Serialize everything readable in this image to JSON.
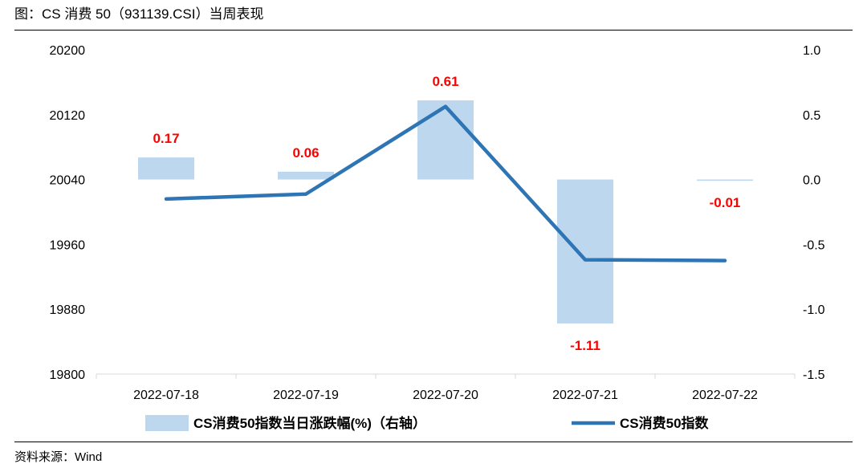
{
  "title": "图：CS 消费 50（931139.CSI）当周表现",
  "source": "资料来源：Wind",
  "chart_data": {
    "type": "bar+line",
    "categories": [
      "2022-07-18",
      "2022-07-19",
      "2022-07-20",
      "2022-07-21",
      "2022-07-22"
    ],
    "left_axis": {
      "ylim": [
        19800,
        20200
      ],
      "ticks": [
        "20200",
        "20120",
        "20040",
        "19960",
        "19880",
        "19800"
      ]
    },
    "right_axis": {
      "ylim": [
        -1.5,
        1.0
      ],
      "ticks": [
        "1.0",
        "0.5",
        "0.0",
        "-0.5",
        "-1.0",
        "-1.5"
      ]
    },
    "bar_series": {
      "name": "CS消费50指数当日涨跌幅(%)（右轴）",
      "axis": "right",
      "values": [
        0.17,
        0.06,
        0.61,
        -1.11,
        -0.01
      ],
      "labels": [
        "0.17",
        "0.06",
        "0.61",
        "-1.11",
        "-0.01"
      ],
      "color": "#bdd7ee",
      "label_color": "#ff0000"
    },
    "line_series": {
      "name": "CS消费50指数",
      "axis": "left",
      "values": [
        20016,
        20022,
        20130,
        19941,
        19940
      ],
      "color": "#2e75b6"
    },
    "grid": false,
    "legend": "bottom"
  }
}
